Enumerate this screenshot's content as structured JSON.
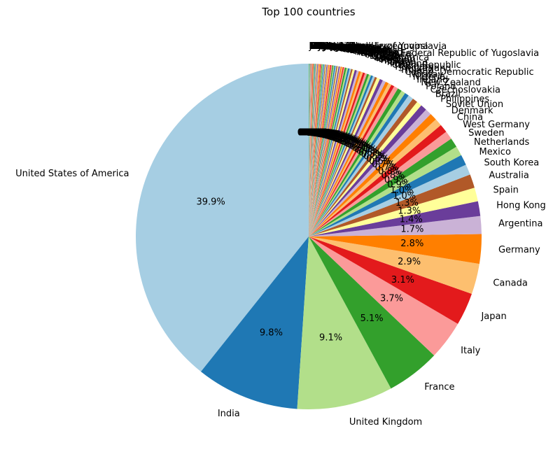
{
  "chart_data": {
    "type": "pie",
    "title": "Top 100 countries",
    "start_angle_deg": 90,
    "direction": "counterclockwise",
    "slices": [
      {
        "label": "United States of America",
        "value": 39.9,
        "pct_label": "39.9%"
      },
      {
        "label": "India",
        "value": 9.8,
        "pct_label": "9.8%"
      },
      {
        "label": "United Kingdom",
        "value": 9.1,
        "pct_label": "9.1%"
      },
      {
        "label": "France",
        "value": 5.1,
        "pct_label": "5.1%"
      },
      {
        "label": "Italy",
        "value": 3.7,
        "pct_label": "3.7%"
      },
      {
        "label": "Japan",
        "value": 3.1,
        "pct_label": "3.1%"
      },
      {
        "label": "Canada",
        "value": 2.9,
        "pct_label": "2.9%"
      },
      {
        "label": "Germany",
        "value": 2.8,
        "pct_label": "2.8%"
      },
      {
        "label": "Argentina",
        "value": 1.7,
        "pct_label": "1.7%"
      },
      {
        "label": "Hong Kong",
        "value": 1.4,
        "pct_label": "1.4%"
      },
      {
        "label": "Spain",
        "value": 1.3,
        "pct_label": "1.3%"
      },
      {
        "label": "Australia",
        "value": 1.3,
        "pct_label": "1.3%"
      },
      {
        "label": "South Korea",
        "value": 1.0,
        "pct_label": "1.0%"
      },
      {
        "label": "Mexico",
        "value": 1.0,
        "pct_label": "1.0%"
      },
      {
        "label": "Netherlands",
        "value": 0.9,
        "pct_label": "0.9%"
      },
      {
        "label": "Sweden",
        "value": 0.9,
        "pct_label": "0.9%"
      },
      {
        "label": "West Germany",
        "value": 0.8,
        "pct_label": "0.8%"
      },
      {
        "label": "China",
        "value": 0.8,
        "pct_label": "0.8%"
      },
      {
        "label": "Denmark",
        "value": 0.7,
        "pct_label": "0.7%"
      },
      {
        "label": "Soviet Union",
        "value": 0.7,
        "pct_label": "0.7%"
      },
      {
        "label": "Philippines",
        "value": 0.6,
        "pct_label": "0.6%"
      },
      {
        "label": "Brazil",
        "value": 0.6,
        "pct_label": "0.6%"
      },
      {
        "label": "Czechoslovakia",
        "value": 0.5,
        "pct_label": "0.5%"
      },
      {
        "label": "Poland",
        "value": 0.5,
        "pct_label": "0.5%"
      },
      {
        "label": "New Zealand",
        "value": 0.5,
        "pct_label": "0.5%"
      },
      {
        "label": "Ireland",
        "value": 0.4,
        "pct_label": "0.4%"
      },
      {
        "label": "Nigeria",
        "value": 0.4,
        "pct_label": "0.4%"
      },
      {
        "label": "Norway",
        "value": 0.4,
        "pct_label": "0.4%"
      },
      {
        "label": "Congo, Democratic Republic",
        "value": 0.4,
        "pct_label": "0.4%"
      },
      {
        "label": "Finland",
        "value": 0.3,
        "pct_label": "0.3%"
      },
      {
        "label": "Switzerland",
        "value": 0.3,
        "pct_label": "0.3%"
      },
      {
        "label": "Hungary",
        "value": 0.3,
        "pct_label": "0.3%"
      },
      {
        "label": "Czech Republic",
        "value": 0.3,
        "pct_label": "0.3%"
      },
      {
        "label": "Thailand",
        "value": 0.3,
        "pct_label": "0.3%"
      },
      {
        "label": "Taiwan",
        "value": 0.3,
        "pct_label": "0.3%"
      },
      {
        "label": "Turkey",
        "value": 0.2,
        "pct_label": "0.2%"
      },
      {
        "label": "Russia",
        "value": 0.2,
        "pct_label": "0.2%"
      },
      {
        "label": "Belgium",
        "value": 0.2,
        "pct_label": "0.2%"
      },
      {
        "label": "Israel",
        "value": 0.2,
        "pct_label": "0.2%"
      },
      {
        "label": "South Africa",
        "value": 0.2,
        "pct_label": "0.2%"
      },
      {
        "label": "Greece",
        "value": 0.2,
        "pct_label": "0.2%"
      },
      {
        "label": "Egypt",
        "value": 0.2,
        "pct_label": "0.2%"
      },
      {
        "label": "Austria",
        "value": 0.2,
        "pct_label": "0.2%"
      },
      {
        "label": "Portugal",
        "value": 0.2,
        "pct_label": "0.2%"
      },
      {
        "label": "Yugoslavia",
        "value": 0.2,
        "pct_label": "0.2%"
      },
      {
        "label": "Socialist Federal Republic of Yugoslavia",
        "value": 0.2,
        "pct_label": "0.2%"
      },
      {
        "label": "Iran",
        "value": 0.2,
        "pct_label": "0.2%"
      },
      {
        "label": "Romania",
        "value": 0.15,
        "pct_label": "0.1%"
      },
      {
        "label": "Indonesia",
        "value": 0.15,
        "pct_label": "0.1%"
      },
      {
        "label": "Pakistan",
        "value": 0.15,
        "pct_label": "0.1%"
      },
      {
        "label": "Chile",
        "value": 0.15,
        "pct_label": "0.1%"
      },
      {
        "label": "Bangladesh",
        "value": 0.15,
        "pct_label": "0.1%"
      },
      {
        "label": "Colombia",
        "value": 0.1,
        "pct_label": "0.1%"
      },
      {
        "label": "Malaysia",
        "value": 0.1,
        "pct_label": "0.1%"
      },
      {
        "label": "Singapore",
        "value": 0.1,
        "pct_label": "0.1%"
      },
      {
        "label": "Bulgaria",
        "value": 0.1,
        "pct_label": "0.1%"
      },
      {
        "label": "Peru",
        "value": 0.1,
        "pct_label": "0.1%"
      },
      {
        "label": "Iceland",
        "value": 0.1,
        "pct_label": "0.1%"
      },
      {
        "label": "Venezuela",
        "value": 0.1,
        "pct_label": "0.1%"
      },
      {
        "label": "Lebanon",
        "value": 0.1,
        "pct_label": "0.1%"
      },
      {
        "label": "Sri Lanka",
        "value": 0.1,
        "pct_label": "0.1%"
      },
      {
        "label": "Ukraine",
        "value": 0.1,
        "pct_label": "0.1%"
      },
      {
        "label": "Croatia",
        "value": 0.1,
        "pct_label": "0.1%"
      },
      {
        "label": "Cuba",
        "value": 0.1,
        "pct_label": "0.1%"
      },
      {
        "label": "Morocco",
        "value": 0.1,
        "pct_label": "0.1%"
      },
      {
        "label": "Serbia",
        "value": 0.1,
        "pct_label": "0.1%"
      },
      {
        "label": "Luxembourg",
        "value": 0.1,
        "pct_label": "0.1%"
      },
      {
        "label": "Estonia",
        "value": 0.08,
        "pct_label": "0.1%"
      },
      {
        "label": "Tunisia",
        "value": 0.08,
        "pct_label": "0.1%"
      },
      {
        "label": "Slovakia",
        "value": 0.08,
        "pct_label": "0.1%"
      },
      {
        "label": "Georgia",
        "value": 0.08,
        "pct_label": "0.1%"
      },
      {
        "label": "Slovenia",
        "value": 0.08,
        "pct_label": "0.1%"
      },
      {
        "label": "Kenya",
        "value": 0.08,
        "pct_label": "0.1%"
      },
      {
        "label": "Algeria",
        "value": 0.08,
        "pct_label": "0.1%"
      },
      {
        "label": "Vietnam",
        "value": 0.08,
        "pct_label": "0.1%"
      },
      {
        "label": "Jamaica",
        "value": 0.07,
        "pct_label": "0.1%"
      },
      {
        "label": "Ghana",
        "value": 0.07,
        "pct_label": "0.1%"
      },
      {
        "label": "Lithuania",
        "value": 0.07,
        "pct_label": "0.1%"
      },
      {
        "label": "Latvia",
        "value": 0.07,
        "pct_label": "0.1%"
      },
      {
        "label": "Kazakhstan",
        "value": 0.07,
        "pct_label": "0.1%"
      },
      {
        "label": "Senegal",
        "value": 0.06,
        "pct_label": "0.1%"
      },
      {
        "label": "Uruguay",
        "value": 0.06,
        "pct_label": "0.1%"
      },
      {
        "label": "Bosnia and Herzegovina",
        "value": 0.06,
        "pct_label": "0.1%"
      },
      {
        "label": "Nepal",
        "value": 0.06,
        "pct_label": "0.1%"
      },
      {
        "label": "Puerto Rico",
        "value": 0.06,
        "pct_label": "0.1%"
      },
      {
        "label": "Armenia",
        "value": 0.05,
        "pct_label": "0.1%"
      },
      {
        "label": "Iraq",
        "value": 0.05,
        "pct_label": "0.1%"
      },
      {
        "label": "Cameroon",
        "value": 0.05,
        "pct_label": "0.0%"
      },
      {
        "label": "Bolivia",
        "value": 0.05,
        "pct_label": "0.0%"
      },
      {
        "label": "Ecuador",
        "value": 0.05,
        "pct_label": "0.0%"
      },
      {
        "label": "Mali",
        "value": 0.04,
        "pct_label": "0.0%"
      },
      {
        "label": "Burkina Faso",
        "value": 0.04,
        "pct_label": "0.0%"
      },
      {
        "label": "Afghanistan",
        "value": 0.04,
        "pct_label": "0.0%"
      },
      {
        "label": "Syria",
        "value": 0.04,
        "pct_label": "0.0%"
      },
      {
        "label": "Belarus",
        "value": 0.04,
        "pct_label": "0.0%"
      },
      {
        "label": "Cyprus",
        "value": 0.04,
        "pct_label": "0.0%"
      },
      {
        "label": "Ethiopia",
        "value": 0.04,
        "pct_label": "0.0%"
      },
      {
        "label": "Malta",
        "value": 0.03,
        "pct_label": "0.0%"
      },
      {
        "label": "Jordan",
        "value": 0.03,
        "pct_label": "0.0%"
      },
      {
        "label": "Federal Republic of Yugoslavia",
        "value": 0.03,
        "pct_label": "0.0%"
      }
    ],
    "colors": [
      "#a6cee3",
      "#1f78b4",
      "#b2df8a",
      "#33a02c",
      "#fb9a99",
      "#e31a1c",
      "#fdbf6f",
      "#ff7f00",
      "#cab2d6",
      "#6a3d9a",
      "#ffff99",
      "#b15928"
    ]
  }
}
